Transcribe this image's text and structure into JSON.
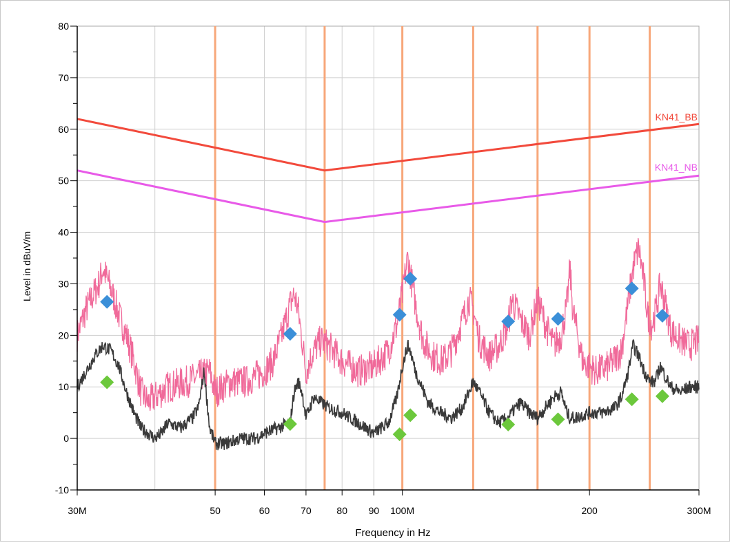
{
  "chart_data": {
    "type": "line",
    "xlabel": "Frequency in Hz",
    "ylabel": "Level in dBuV/m",
    "x_scale": "log",
    "xlim": [
      30,
      300
    ],
    "ylim": [
      -10,
      80
    ],
    "grid": true,
    "y_ticks": [
      -10,
      0,
      10,
      20,
      30,
      40,
      50,
      60,
      70,
      80
    ],
    "x_ticks": [
      {
        "value": 30,
        "label": "30M"
      },
      {
        "value": 50,
        "label": "50"
      },
      {
        "value": 60,
        "label": "60"
      },
      {
        "value": 70,
        "label": "70"
      },
      {
        "value": 80,
        "label": "80"
      },
      {
        "value": 90,
        "label": "90"
      },
      {
        "value": 100,
        "label": "100M"
      },
      {
        "value": 200,
        "label": "200"
      },
      {
        "value": 300,
        "label": "300M"
      }
    ],
    "x_gridlines": [
      40,
      50,
      60,
      70,
      80,
      90,
      100,
      200
    ],
    "vertical_markers": [
      50,
      75,
      100,
      130,
      165,
      200,
      250
    ],
    "series": [
      {
        "name": "KN41_BB",
        "color": "#f24a3c",
        "x": [
          30,
          75,
          300
        ],
        "values": [
          62,
          52,
          61
        ]
      },
      {
        "name": "KN41_NB",
        "color": "#e85ae8",
        "x": [
          30,
          75,
          300
        ],
        "values": [
          52,
          42,
          51
        ]
      },
      {
        "color": "#f06a9a",
        "x": [
          30,
          31,
          32.5,
          33,
          34,
          35,
          36,
          37,
          38,
          39,
          40,
          42,
          45,
          47,
          49,
          50,
          53,
          56,
          60,
          62,
          64,
          66,
          67,
          68,
          70,
          72,
          74,
          76,
          80,
          85,
          90,
          95,
          98,
          100,
          102,
          103,
          105,
          108,
          112,
          116,
          120,
          125,
          128,
          130,
          133,
          138,
          143,
          148,
          150,
          155,
          160,
          165,
          170,
          175,
          180,
          184,
          186,
          188,
          195,
          205,
          215,
          225,
          230,
          235,
          240,
          245,
          248,
          252,
          256,
          260,
          265,
          270,
          280,
          290,
          300
        ],
        "values": [
          20,
          25,
          30,
          33,
          29,
          24,
          20,
          15,
          9,
          7,
          8,
          10,
          11,
          12,
          13,
          9,
          11,
          11,
          13,
          15,
          20,
          26,
          28,
          25,
          13,
          17,
          19,
          18,
          15,
          13,
          14,
          17,
          22,
          28,
          35,
          32,
          26,
          19,
          16,
          15,
          17,
          23,
          27,
          25,
          19,
          16,
          18,
          22,
          27,
          23,
          20,
          27,
          22,
          18,
          20,
          26,
          33,
          25,
          15,
          13,
          14,
          17,
          25,
          33,
          37,
          30,
          24,
          22,
          25,
          30,
          26,
          21,
          19,
          18,
          19
        ]
      },
      {
        "color": "#3a3a3a",
        "x": [
          30,
          31,
          32,
          33,
          34,
          35,
          36,
          37,
          38,
          39,
          40,
          41,
          42,
          44,
          46,
          47,
          48,
          49,
          50,
          52,
          55,
          58,
          60,
          63,
          66,
          67,
          68,
          69,
          70,
          72,
          74,
          76,
          80,
          85,
          90,
          95,
          98,
          100,
          102,
          103,
          105,
          110,
          115,
          120,
          125,
          128,
          130,
          133,
          138,
          143,
          148,
          150,
          155,
          160,
          165,
          170,
          175,
          180,
          184,
          186,
          190,
          200,
          210,
          220,
          225,
          230,
          235,
          240,
          245,
          250,
          255,
          260,
          265,
          270,
          280,
          290,
          300
        ],
        "values": [
          10,
          13,
          16,
          18,
          17,
          14,
          9,
          5,
          2,
          1,
          0,
          1,
          3,
          2,
          4,
          6,
          13,
          2,
          -1,
          -1,
          0,
          0,
          1,
          2,
          3,
          9,
          11,
          9,
          4,
          8,
          7,
          6,
          5,
          3,
          1,
          3,
          8,
          14,
          18,
          17,
          13,
          7,
          5,
          4,
          6,
          9,
          11,
          9,
          5,
          3,
          4,
          5,
          7,
          5,
          4,
          6,
          8,
          9,
          5,
          4,
          4,
          5,
          5,
          6,
          8,
          12,
          18,
          16,
          13,
          11,
          11,
          14,
          12,
          10,
          9,
          10,
          10
        ]
      }
    ],
    "quasi_peak_points": {
      "color": "#3b8fd8",
      "x": [
        33.5,
        66,
        99,
        103,
        148,
        178,
        234,
        262
      ],
      "values": [
        26.5,
        20.3,
        24,
        31,
        22.7,
        23.2,
        29.1,
        23.8
      ]
    },
    "average_points": {
      "color": "#6cc83c",
      "x": [
        33.5,
        66,
        99,
        103,
        148,
        178,
        234,
        262
      ],
      "values": [
        10.9,
        2.8,
        0.8,
        4.5,
        2.7,
        3.7,
        7.6,
        8.2
      ]
    }
  }
}
